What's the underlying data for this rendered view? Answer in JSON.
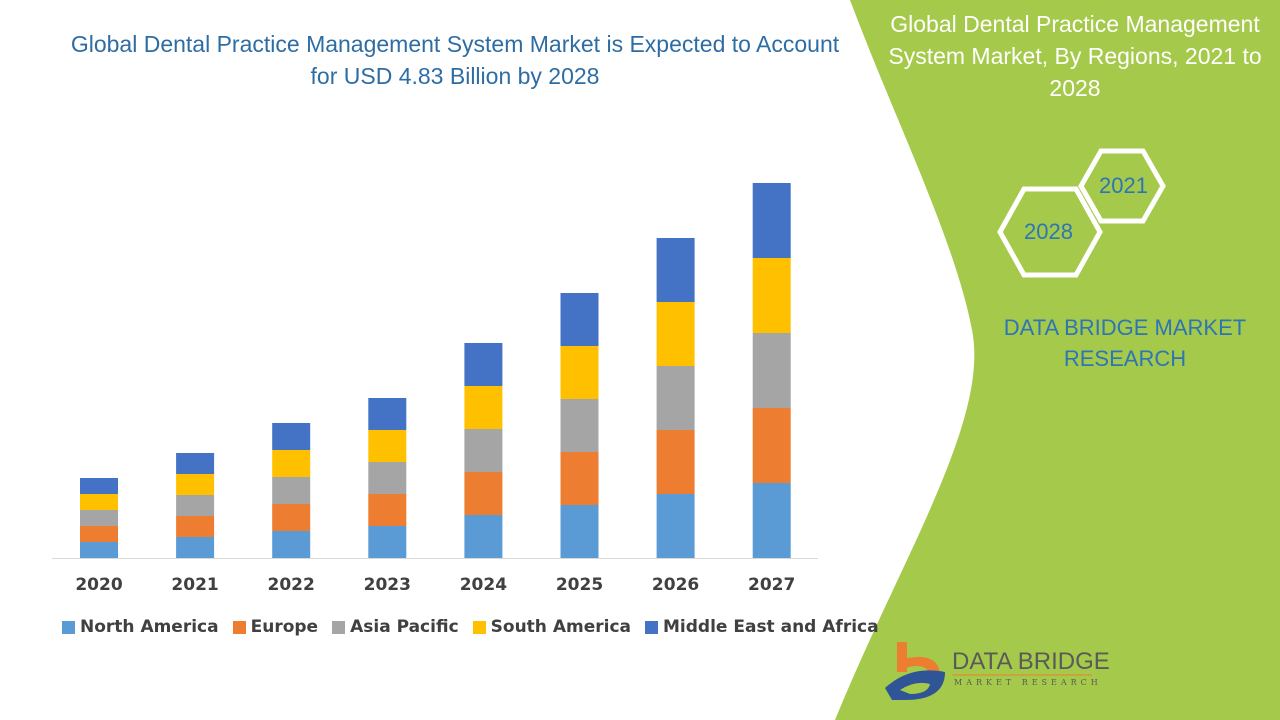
{
  "header": {
    "title": "Global Dental Practice Management System Market is Expected to Account for USD 4.83 Billion by 2028"
  },
  "side_panel": {
    "title": "Global Dental Practice Management System Market, By Regions, 2021 to 2028",
    "hex_year_1": "2021",
    "hex_year_2": "2028",
    "brand": "DATA BRIDGE MARKET RESEARCH",
    "panel_color": "#A5C94A"
  },
  "logo": {
    "name": "DATA BRIDGE",
    "tagline": "MARKET RESEARCH"
  },
  "chart_data": {
    "type": "bar",
    "stacked": true,
    "categories": [
      "2020",
      "2021",
      "2022",
      "2023",
      "2024",
      "2025",
      "2026",
      "2027"
    ],
    "series": [
      {
        "name": "North America",
        "color": "#5B9BD5",
        "values": [
          16,
          21,
          27,
          32,
          43,
          53,
          64,
          75
        ]
      },
      {
        "name": "Europe",
        "color": "#ED7D31",
        "values": [
          16,
          21,
          27,
          32,
          43,
          53,
          64,
          75
        ]
      },
      {
        "name": "Asia Pacific",
        "color": "#A5A5A5",
        "values": [
          16,
          21,
          27,
          32,
          43,
          53,
          64,
          75
        ]
      },
      {
        "name": "South America",
        "color": "#FFC000",
        "values": [
          16,
          21,
          27,
          32,
          43,
          53,
          64,
          75
        ]
      },
      {
        "name": "Middle East and Africa",
        "color": "#4472C4",
        "values": [
          16,
          21,
          27,
          32,
          43,
          53,
          64,
          75
        ]
      }
    ],
    "title": "",
    "xlabel": "",
    "ylabel": "",
    "y_axis_shown": false,
    "grid": false,
    "legend_position": "bottom"
  }
}
